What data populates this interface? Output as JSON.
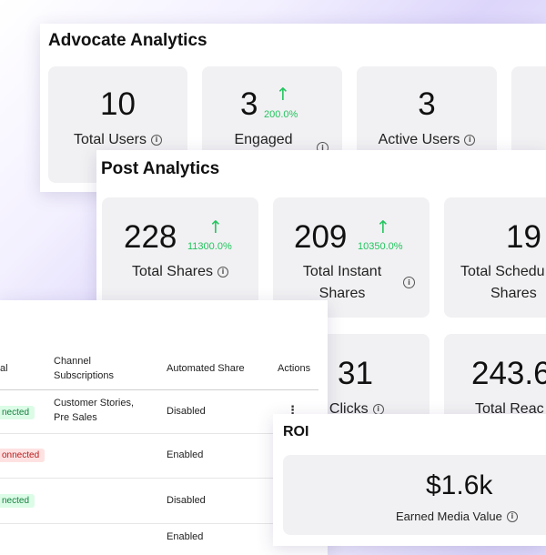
{
  "advocate": {
    "title": "Advocate Analytics",
    "cards": [
      {
        "value": "10",
        "label": "Total Users"
      },
      {
        "value": "3",
        "change": "200.0%",
        "label": "Engaged"
      },
      {
        "value": "3",
        "label": "Active Users"
      }
    ]
  },
  "post": {
    "title": "Post Analytics",
    "cards": [
      {
        "value": "228",
        "change": "11300.0%",
        "label": "Total Shares"
      },
      {
        "value": "209",
        "change": "10350.0%",
        "label_line1": "Total Instant",
        "label_line2": "Shares"
      },
      {
        "value": "19",
        "label_line1": "Total Schedu",
        "label_line2": "Shares"
      },
      {
        "value": "31",
        "label": "al Clicks"
      },
      {
        "value": "243.6",
        "label": "Total Reac"
      }
    ]
  },
  "table": {
    "headers": {
      "col1": "al",
      "channel_line1": "Channel",
      "channel_line2": "Subscriptions",
      "automated": "Automated Share",
      "actions": "Actions"
    },
    "rows": [
      {
        "status": "nected",
        "status_type": "connected",
        "channel_line1": "Customer Stories,",
        "channel_line2": "Pre Sales",
        "automated": "Disabled",
        "action": "⋮"
      },
      {
        "status": "onnected",
        "status_type": "disconnected",
        "channel_line1": "",
        "channel_line2": "",
        "automated": "Enabled"
      },
      {
        "status": "nected",
        "status_type": "connected",
        "channel_line1": "",
        "channel_line2": "",
        "automated": "Disabled"
      },
      {
        "status": "",
        "channel_line1": "",
        "channel_line2": "",
        "automated": "Enabled"
      }
    ]
  },
  "roi": {
    "title": "ROI",
    "value": "$1.6k",
    "label": "Earned Media Value"
  },
  "icons": {
    "info": "info-icon",
    "arrow_up": "arrow-up-icon",
    "kebab": "kebab-menu-icon"
  },
  "colors": {
    "positive": "#22c55e",
    "connected_bg": "#dcfce7",
    "disconnected_bg": "#fee2e2"
  }
}
